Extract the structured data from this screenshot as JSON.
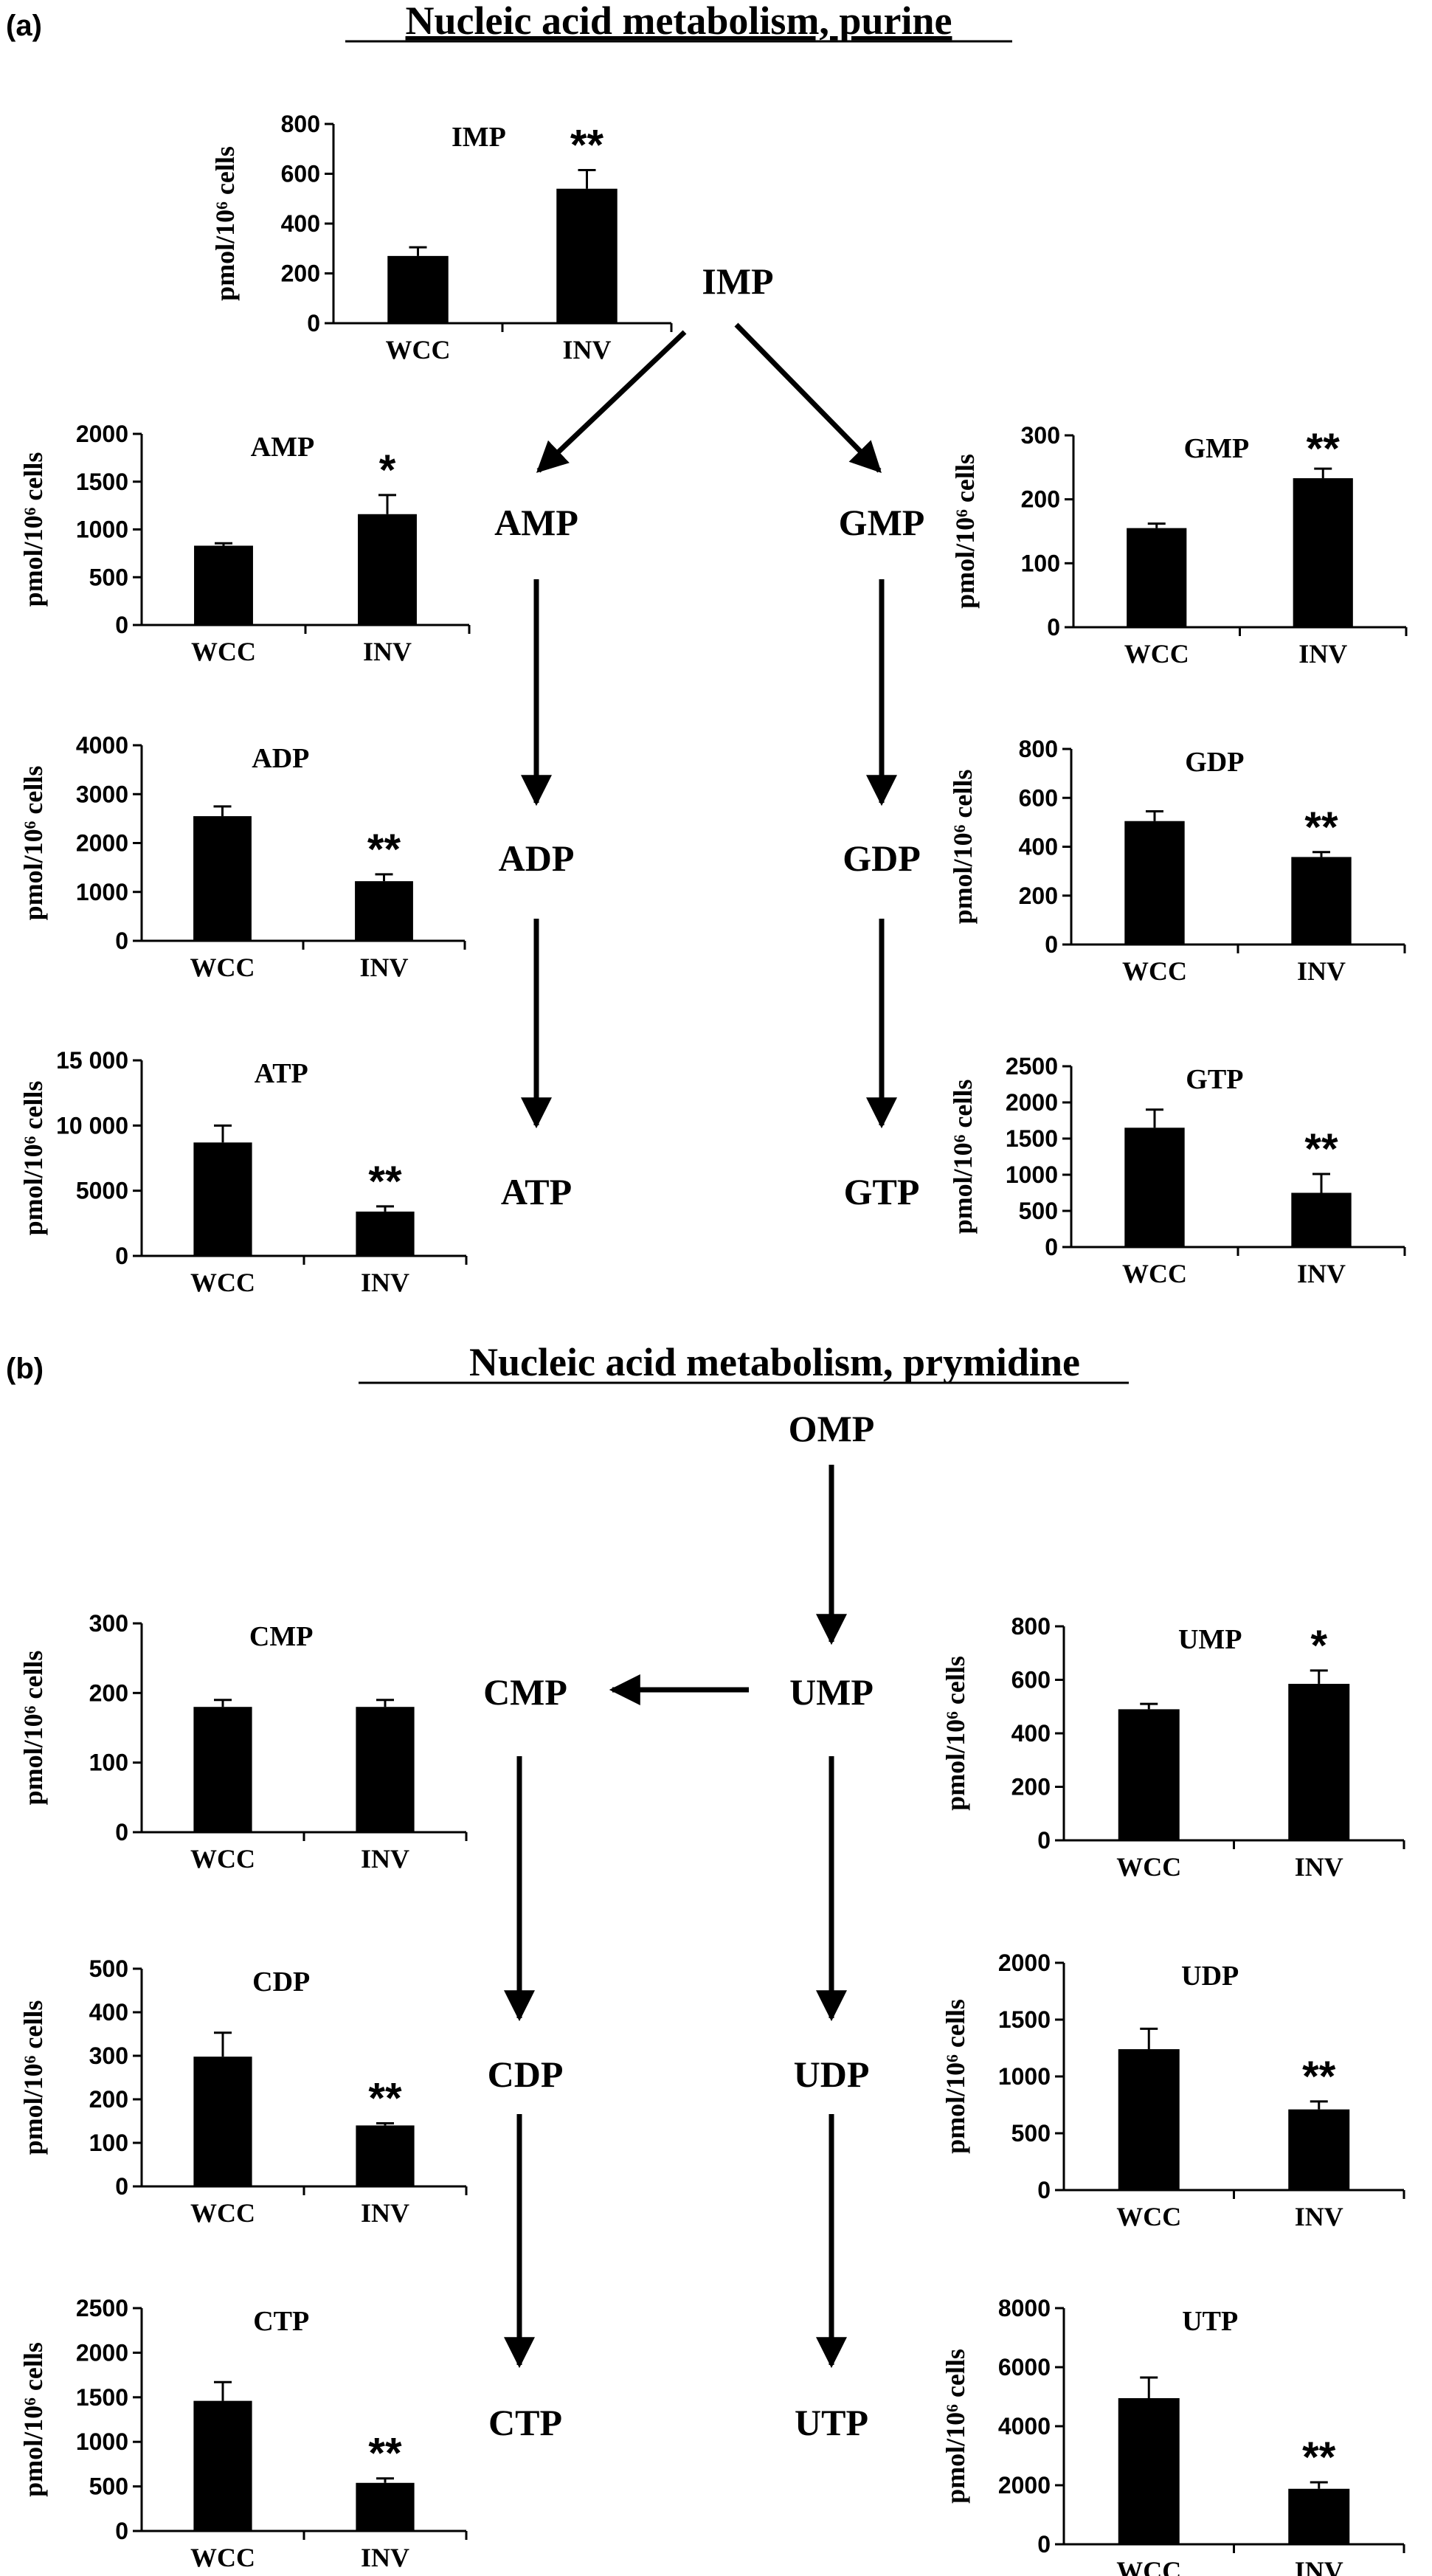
{
  "panels": [
    {
      "label": "(a)",
      "title": "Nucleic acid metabolism, purine"
    },
    {
      "label": "(b)",
      "title": "Nucleic acid metabolism, prymidine"
    }
  ],
  "pathway_nodes": [
    "IMP",
    "AMP",
    "GMP",
    "ADP",
    "GDP",
    "ATP",
    "GTP",
    "OMP",
    "CMP",
    "UMP",
    "CDP",
    "UDP",
    "CTP",
    "UTP"
  ],
  "chart_data": [
    {
      "type": "bar",
      "title": "IMP",
      "ylabel": "pmol/10⁶ cells",
      "categories": [
        "WCC",
        "INV"
      ],
      "values": [
        270,
        540
      ],
      "errors": [
        35,
        75
      ],
      "ylim": [
        0,
        800
      ],
      "yticks": [
        "0",
        "200",
        "400",
        "600",
        "800"
      ],
      "significance": "**"
    },
    {
      "type": "bar",
      "title": "AMP",
      "ylabel": "pmol/10⁶ cells",
      "categories": [
        "WCC",
        "INV"
      ],
      "values": [
        830,
        1160
      ],
      "errors": [
        25,
        200
      ],
      "ylim": [
        0,
        2000
      ],
      "yticks": [
        "0",
        "500",
        "1000",
        "1500",
        "2000"
      ],
      "significance": "*"
    },
    {
      "type": "bar",
      "title": "GMP",
      "ylabel": "pmol/10⁶ cells",
      "categories": [
        "WCC",
        "INV"
      ],
      "values": [
        155,
        233
      ],
      "errors": [
        7,
        15
      ],
      "ylim": [
        0,
        300
      ],
      "yticks": [
        "0",
        "100",
        "200",
        "300"
      ],
      "significance": "**"
    },
    {
      "type": "bar",
      "title": "ADP",
      "ylabel": "pmol/10⁶ cells",
      "categories": [
        "WCC",
        "INV"
      ],
      "values": [
        2550,
        1220
      ],
      "errors": [
        200,
        140
      ],
      "ylim": [
        0,
        4000
      ],
      "yticks": [
        "0",
        "1000",
        "2000",
        "3000",
        "4000"
      ],
      "significance": "**"
    },
    {
      "type": "bar",
      "title": "GDP",
      "ylabel": "pmol/10⁶ cells",
      "categories": [
        "WCC",
        "INV"
      ],
      "values": [
        505,
        358
      ],
      "errors": [
        40,
        20
      ],
      "ylim": [
        0,
        800
      ],
      "yticks": [
        "0",
        "200",
        "400",
        "600",
        "800"
      ],
      "significance": "**"
    },
    {
      "type": "bar",
      "title": "ATP",
      "ylabel": "pmol/10⁶ cells",
      "categories": [
        "WCC",
        "INV"
      ],
      "values": [
        8700,
        3400
      ],
      "errors": [
        1300,
        400
      ],
      "ylim": [
        0,
        15000
      ],
      "yticks": [
        "0",
        "5000",
        "10 000",
        "15 000"
      ],
      "significance": "**"
    },
    {
      "type": "bar",
      "title": "GTP",
      "ylabel": "pmol/10⁶ cells",
      "categories": [
        "WCC",
        "INV"
      ],
      "values": [
        1650,
        750
      ],
      "errors": [
        250,
        260
      ],
      "ylim": [
        0,
        2500
      ],
      "yticks": [
        "0",
        "500",
        "1000",
        "1500",
        "2000",
        "2500"
      ],
      "significance": "**"
    },
    {
      "type": "bar",
      "title": "CMP",
      "ylabel": "pmol/10⁶ cells",
      "categories": [
        "WCC",
        "INV"
      ],
      "values": [
        180,
        180
      ],
      "errors": [
        10,
        10
      ],
      "ylim": [
        0,
        300
      ],
      "yticks": [
        "0",
        "100",
        "200",
        "300"
      ],
      "significance": ""
    },
    {
      "type": "bar",
      "title": "UMP",
      "ylabel": "pmol/10⁶ cells",
      "categories": [
        "WCC",
        "INV"
      ],
      "values": [
        490,
        585
      ],
      "errors": [
        20,
        50
      ],
      "ylim": [
        0,
        800
      ],
      "yticks": [
        "0",
        "200",
        "400",
        "600",
        "800"
      ],
      "significance": "*"
    },
    {
      "type": "bar",
      "title": "CDP",
      "ylabel": "pmol/10⁶ cells",
      "categories": [
        "WCC",
        "INV"
      ],
      "values": [
        298,
        140
      ],
      "errors": [
        55,
        5
      ],
      "ylim": [
        0,
        500
      ],
      "yticks": [
        "0",
        "100",
        "200",
        "300",
        "400",
        "500"
      ],
      "significance": "**"
    },
    {
      "type": "bar",
      "title": "UDP",
      "ylabel": "pmol/10⁶ cells",
      "categories": [
        "WCC",
        "INV"
      ],
      "values": [
        1240,
        710
      ],
      "errors": [
        180,
        70
      ],
      "ylim": [
        0,
        2000
      ],
      "yticks": [
        "0",
        "500",
        "1000",
        "1500",
        "2000"
      ],
      "significance": "**"
    },
    {
      "type": "bar",
      "title": "CTP",
      "ylabel": "pmol/10⁶ cells",
      "categories": [
        "WCC",
        "INV"
      ],
      "values": [
        1460,
        540
      ],
      "errors": [
        210,
        50
      ],
      "ylim": [
        0,
        2500
      ],
      "yticks": [
        "0",
        "500",
        "1000",
        "1500",
        "2000",
        "2500"
      ],
      "significance": "**"
    },
    {
      "type": "bar",
      "title": "UTP",
      "ylabel": "pmol/10⁶ cells",
      "categories": [
        "WCC",
        "INV"
      ],
      "values": [
        4950,
        1880
      ],
      "errors": [
        700,
        220
      ],
      "ylim": [
        0,
        8000
      ],
      "yticks": [
        "0",
        "2000",
        "4000",
        "6000",
        "8000"
      ],
      "significance": "**"
    }
  ]
}
